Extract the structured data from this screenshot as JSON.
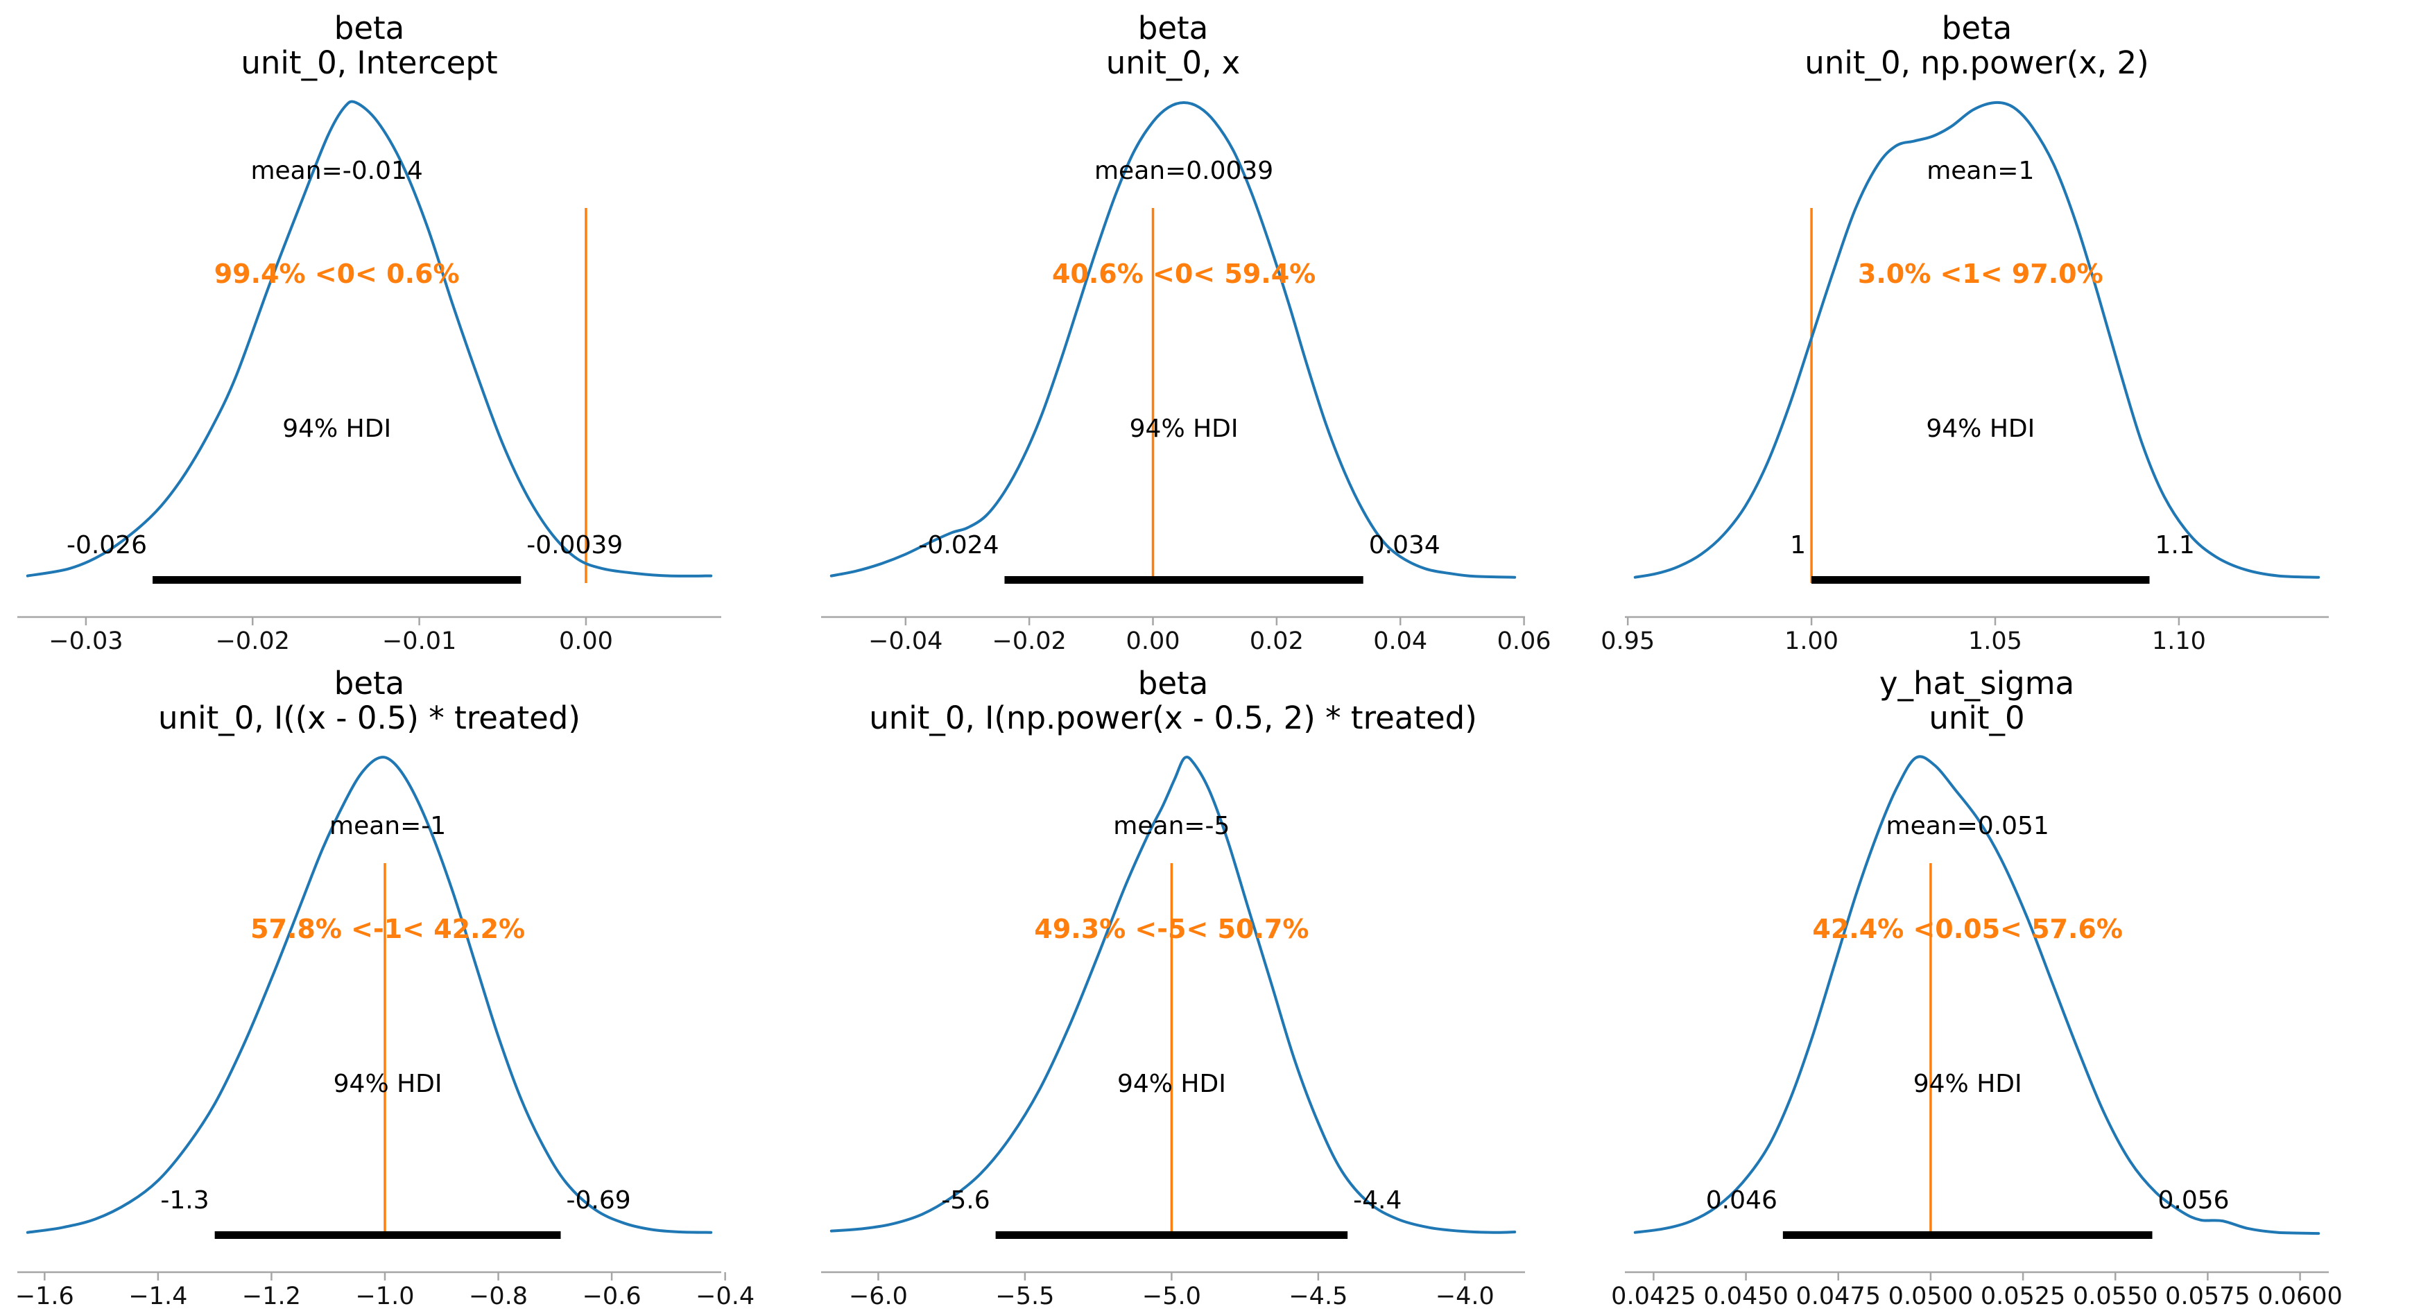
{
  "figure": {
    "background": "#ffffff",
    "rows": 2,
    "cols": 3
  },
  "colors": {
    "curve": "#1f77b4",
    "ref_line": "#ff7f0e",
    "ref_text": "#ff7f0e",
    "hdi_bar": "#000000",
    "spine": "#a6a6a6",
    "text": "#000000"
  },
  "chart_data": {
    "type": "line",
    "subtype": "posterior-kde-grid",
    "legend": "none",
    "grid": "off",
    "panels": [
      {
        "title": [
          "beta",
          "unit_0, Intercept"
        ],
        "mean_label": "mean=-0.014",
        "mean": -0.014,
        "ref_value": 0,
        "ref_label": "99.4% <0< 0.6%",
        "hdi_text": "94% HDI",
        "hdi_low": -0.026,
        "hdi_low_label": "-0.026",
        "hdi_high": -0.0039,
        "hdi_high_label": "-0.0039",
        "x_ticks": [
          -0.03,
          -0.02,
          -0.01,
          0.0
        ],
        "x_tick_labels": [
          "−0.03",
          "−0.02",
          "−0.01",
          "0.00"
        ],
        "kde": {
          "x": [
            -0.0335,
            -0.031,
            -0.029,
            -0.027,
            -0.0255,
            -0.024,
            -0.0225,
            -0.021,
            -0.019,
            -0.017,
            -0.0155,
            -0.0145,
            -0.0138,
            -0.0125,
            -0.011,
            -0.0095,
            -0.008,
            -0.0065,
            -0.005,
            -0.0035,
            -0.002,
            -0.0005,
            0.001,
            0.003,
            0.005,
            0.0075
          ],
          "density": [
            0.015,
            0.03,
            0.06,
            0.11,
            0.16,
            0.23,
            0.32,
            0.43,
            0.62,
            0.8,
            0.93,
            0.99,
            1.0,
            0.96,
            0.87,
            0.74,
            0.58,
            0.43,
            0.29,
            0.18,
            0.1,
            0.05,
            0.03,
            0.02,
            0.015,
            0.015
          ]
        }
      },
      {
        "title": [
          "beta",
          "unit_0, x"
        ],
        "mean_label": "mean=0.0039",
        "mean": 0.0039,
        "ref_value": 0,
        "ref_label": "40.6% <0< 59.4%",
        "hdi_text": "94% HDI",
        "hdi_low": -0.024,
        "hdi_low_label": "-0.024",
        "hdi_high": 0.034,
        "hdi_high_label": "0.034",
        "x_ticks": [
          -0.04,
          -0.02,
          0.0,
          0.02,
          0.04,
          0.06
        ],
        "x_tick_labels": [
          "−0.04",
          "−0.02",
          "0.00",
          "0.02",
          "0.04",
          "0.06"
        ],
        "kde": {
          "x": [
            -0.052,
            -0.048,
            -0.044,
            -0.04,
            -0.036,
            -0.0325,
            -0.03,
            -0.027,
            -0.024,
            -0.021,
            -0.018,
            -0.015,
            -0.012,
            -0.009,
            -0.006,
            -0.003,
            0.0,
            0.0025,
            0.005,
            0.0075,
            0.01,
            0.013,
            0.016,
            0.019,
            0.022,
            0.025,
            0.028,
            0.031,
            0.034,
            0.037,
            0.04,
            0.044,
            0.048,
            0.052,
            0.0585
          ],
          "density": [
            0.015,
            0.025,
            0.04,
            0.06,
            0.085,
            0.105,
            0.115,
            0.14,
            0.19,
            0.26,
            0.35,
            0.46,
            0.58,
            0.7,
            0.81,
            0.9,
            0.96,
            0.99,
            1.0,
            0.99,
            0.96,
            0.9,
            0.81,
            0.7,
            0.58,
            0.45,
            0.33,
            0.23,
            0.15,
            0.09,
            0.055,
            0.03,
            0.02,
            0.014,
            0.012
          ]
        }
      },
      {
        "title": [
          "beta",
          "unit_0, np.power(x, 2)"
        ],
        "mean_label": "mean=1",
        "mean": 1,
        "ref_value": 1,
        "ref_label": "3.0% <1< 97.0%",
        "hdi_text": "94% HDI",
        "hdi_low": 1.0,
        "hdi_low_label": "1",
        "hdi_high": 1.092,
        "hdi_high_label": "1.1",
        "x_ticks": [
          0.95,
          1.0,
          1.05,
          1.1
        ],
        "x_tick_labels": [
          "0.95",
          "1.00",
          "1.05",
          "1.10"
        ],
        "kde": {
          "x": [
            0.952,
            0.958,
            0.964,
            0.97,
            0.976,
            0.982,
            0.988,
            0.994,
            1.0,
            1.006,
            1.012,
            1.018,
            1.023,
            1.028,
            1.033,
            1.038,
            1.044,
            1.05,
            1.055,
            1.06,
            1.066,
            1.072,
            1.078,
            1.084,
            1.09,
            1.096,
            1.103,
            1.11,
            1.118,
            1.127,
            1.138
          ],
          "density": [
            0.012,
            0.02,
            0.035,
            0.06,
            0.1,
            0.16,
            0.25,
            0.37,
            0.51,
            0.65,
            0.78,
            0.87,
            0.91,
            0.92,
            0.93,
            0.95,
            0.985,
            1.0,
            0.99,
            0.95,
            0.87,
            0.75,
            0.6,
            0.44,
            0.29,
            0.18,
            0.1,
            0.055,
            0.028,
            0.015,
            0.012
          ]
        }
      },
      {
        "title": [
          "beta",
          "unit_0, I((x - 0.5) * treated)"
        ],
        "mean_label": "mean=-1",
        "mean": -1,
        "ref_value": -1,
        "ref_label": "57.8% <-1< 42.2%",
        "hdi_text": "94% HDI",
        "hdi_low": -1.3,
        "hdi_low_label": "-1.3",
        "hdi_high": -0.69,
        "hdi_high_label": "-0.69",
        "x_ticks": [
          -1.6,
          -1.4,
          -1.2,
          -1.0,
          -0.8,
          -0.6,
          -0.4
        ],
        "x_tick_labels": [
          "−1.6",
          "−1.4",
          "−1.2",
          "−1.0",
          "−0.8",
          "−0.6",
          "−0.4"
        ],
        "kde": {
          "x": [
            -1.63,
            -1.57,
            -1.51,
            -1.45,
            -1.4,
            -1.35,
            -1.3,
            -1.25,
            -1.2,
            -1.15,
            -1.11,
            -1.07,
            -1.04,
            -1.01,
            -0.985,
            -0.955,
            -0.92,
            -0.88,
            -0.84,
            -0.8,
            -0.76,
            -0.72,
            -0.68,
            -0.63,
            -0.58,
            -0.53,
            -0.48,
            -0.425
          ],
          "density": [
            0.012,
            0.022,
            0.04,
            0.075,
            0.12,
            0.19,
            0.28,
            0.4,
            0.54,
            0.69,
            0.81,
            0.91,
            0.97,
            1.0,
            0.99,
            0.94,
            0.85,
            0.72,
            0.57,
            0.42,
            0.29,
            0.19,
            0.115,
            0.06,
            0.032,
            0.018,
            0.013,
            0.012
          ]
        }
      },
      {
        "title": [
          "beta",
          "unit_0, I(np.power(x - 0.5, 2) * treated)"
        ],
        "mean_label": "mean=-5",
        "mean": -5,
        "ref_value": -5,
        "ref_label": "49.3% <-5< 50.7%",
        "hdi_text": "94% HDI",
        "hdi_low": -5.6,
        "hdi_low_label": "-5.6",
        "hdi_high": -4.4,
        "hdi_high_label": "-4.4",
        "x_ticks": [
          -6.0,
          -5.5,
          -5.0,
          -4.5,
          -4.0
        ],
        "x_tick_labels": [
          "−6.0",
          "−5.5",
          "−5.0",
          "−4.5",
          "−4.0"
        ],
        "kde": {
          "x": [
            -6.16,
            -6.05,
            -5.95,
            -5.85,
            -5.75,
            -5.65,
            -5.55,
            -5.45,
            -5.35,
            -5.25,
            -5.16,
            -5.08,
            -5.03,
            -4.99,
            -4.955,
            -4.92,
            -4.87,
            -4.81,
            -4.74,
            -4.66,
            -4.58,
            -4.5,
            -4.42,
            -4.33,
            -4.23,
            -4.12,
            -4.0,
            -3.9,
            -3.83
          ],
          "density": [
            0.015,
            0.02,
            0.03,
            0.05,
            0.085,
            0.135,
            0.21,
            0.31,
            0.44,
            0.59,
            0.73,
            0.84,
            0.9,
            0.955,
            1.0,
            0.985,
            0.93,
            0.83,
            0.69,
            0.53,
            0.37,
            0.24,
            0.14,
            0.075,
            0.04,
            0.022,
            0.014,
            0.012,
            0.013
          ]
        }
      },
      {
        "title": [
          "y_hat_sigma",
          "unit_0"
        ],
        "mean_label": "mean=0.051",
        "mean": 0.051,
        "ref_value": 0.05,
        "ref_label": "42.4% <0.05< 57.6%",
        "hdi_text": "94% HDI",
        "hdi_low": 0.046,
        "hdi_low_label": "0.046",
        "hdi_high": 0.056,
        "hdi_high_label": "0.056",
        "x_ticks": [
          0.0425,
          0.045,
          0.0475,
          0.05,
          0.0525,
          0.055,
          0.0575,
          0.06
        ],
        "x_tick_labels": [
          "0.0425",
          "0.0450",
          "0.0475",
          "0.0500",
          "0.0525",
          "0.0550",
          "0.0575",
          "0.0600"
        ],
        "kde": {
          "x": [
            0.042,
            0.0428,
            0.0435,
            0.0442,
            0.0449,
            0.0456,
            0.0462,
            0.0468,
            0.0474,
            0.048,
            0.0486,
            0.0491,
            0.0496,
            0.0501,
            0.0507,
            0.0513,
            0.0519,
            0.0526,
            0.0533,
            0.054,
            0.0547,
            0.0554,
            0.0561,
            0.0568,
            0.0573,
            0.0579,
            0.0586,
            0.0594,
            0.0605
          ],
          "density": [
            0.012,
            0.02,
            0.035,
            0.065,
            0.115,
            0.19,
            0.29,
            0.42,
            0.57,
            0.72,
            0.85,
            0.94,
            1.0,
            0.985,
            0.93,
            0.87,
            0.79,
            0.67,
            0.53,
            0.39,
            0.26,
            0.16,
            0.095,
            0.055,
            0.038,
            0.036,
            0.02,
            0.012,
            0.01
          ]
        }
      }
    ]
  }
}
